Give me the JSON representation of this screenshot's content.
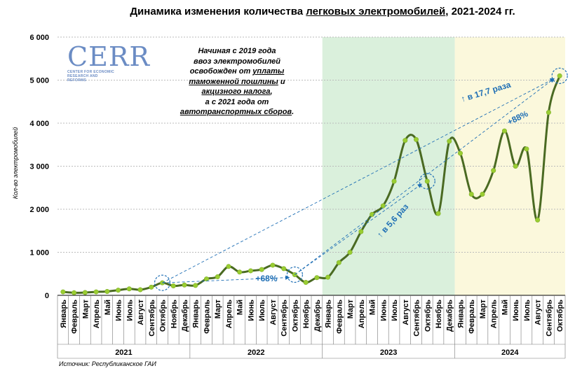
{
  "title": {
    "part1": "Динамика изменения количества ",
    "part2": "легковых электромобилей",
    "part3": ", 2021-2024 гг."
  },
  "logo": {
    "text": "CERR",
    "subtext": "CENTER FOR ECONOMIC RESEARCH AND REFORMS"
  },
  "note": {
    "l1": "Начиная с 2019 года",
    "l2": "ввоз электромобилей",
    "l3a": "освобожден от ",
    "l3b": "уплаты",
    "l4a": "таможенной пошлины",
    "l4b": " и",
    "l5": "акцизного налога",
    "l5b": ",",
    "l6": "а с 2021 года от",
    "l7": "автотранспортных сборов",
    "l7b": "."
  },
  "source": "Источник: Республиканское ГАИ",
  "chart_data": {
    "type": "line",
    "ylabel": "Кол-во электромобилей",
    "ylim": [
      0,
      6000
    ],
    "yticks": [
      "0",
      "1 000",
      "2 000",
      "3 000",
      "4 000",
      "5 000",
      "6 000"
    ],
    "categories": [
      "Январь",
      "Февраль",
      "Март",
      "Апрель",
      "Май",
      "Июнь",
      "Июль",
      "Август",
      "Сентябрь",
      "Октябрь",
      "Ноябрь",
      "Декабрь",
      "Январь",
      "Февраль",
      "Март",
      "Апрель",
      "Май",
      "Июнь",
      "Июль",
      "Август",
      "Сентябрь",
      "Октябрь",
      "Ноябрь",
      "Декабрь",
      "Январь",
      "Февраль",
      "Март",
      "Апрель",
      "Май",
      "Июнь",
      "Июль",
      "Август",
      "Сентябрь",
      "Октябрь",
      "Ноябрь",
      "Декабрь",
      "Январь",
      "Февраль",
      "Март",
      "Апрель",
      "Май",
      "Июнь",
      "Июль",
      "Август",
      "Сентябрь",
      "Октябрь"
    ],
    "years": [
      "2021",
      "2022",
      "2023",
      "2024"
    ],
    "values": [
      80,
      60,
      65,
      80,
      90,
      120,
      150,
      130,
      190,
      290,
      220,
      240,
      230,
      380,
      430,
      670,
      540,
      570,
      600,
      700,
      620,
      480,
      300,
      410,
      420,
      760,
      1000,
      1480,
      1880,
      2080,
      2650,
      3600,
      3620,
      2650,
      1900,
      3580,
      3300,
      2350,
      2350,
      2900,
      3820,
      3000,
      3400,
      1750,
      4250,
      5100
    ],
    "annotations": [
      "↑ в 17,7 раза",
      "+88%",
      "↑ в 5,6 раз",
      "+68%"
    ],
    "shaded": [
      {
        "label": "2023",
        "color": "#daf0dc"
      },
      {
        "label": "2024",
        "color": "#fbf8dc"
      }
    ],
    "line_color": "#4a6a22",
    "marker_color": "#9acd32",
    "annotation_color": "#1f6fb5"
  }
}
